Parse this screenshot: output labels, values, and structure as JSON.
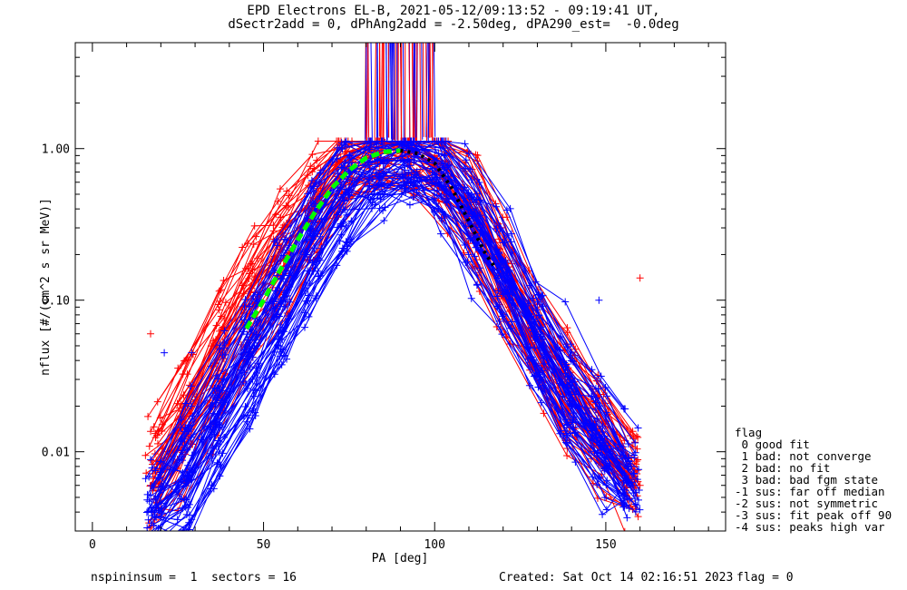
{
  "header": {
    "title_line1": "EPD Electrons EL-B, 2021-05-12/09:13:52 - 09:19:41 UT,",
    "title_line2": "dSectr2add = 0, dPhAng2add = -2.50deg, dPA290_est=  -0.0deg"
  },
  "footer": {
    "left": "nspininsum =  1  sectors = 16",
    "created": "Created: Sat Oct 14 02:16:51 2023",
    "flag": "flag = 0"
  },
  "legend": {
    "title": "flag",
    "items": [
      " 0 good fit",
      " 1 bad: not converge",
      " 2 bad: no fit",
      " 3 bad: bad fgm state",
      "-1 sus: far off median",
      "-2 sus: not symmetric",
      "-3 sus: fit peak off 90",
      "-4 sus: peaks high var"
    ]
  },
  "chart_data": {
    "type": "line",
    "xlabel": "PA [deg]",
    "ylabel": "nflux [#/(cm^2 s sr MeV)]",
    "xlim": [
      -5,
      185
    ],
    "ylim": [
      0.003,
      5
    ],
    "y_scale": "log",
    "x_ticks": [
      0,
      50,
      100,
      150
    ],
    "x_tick_labels": [
      "0",
      "50",
      "100",
      "150"
    ],
    "y_ticks": [
      0.01,
      0.1,
      1.0
    ],
    "y_tick_labels": [
      "0.01",
      "0.10",
      "1.00"
    ],
    "series": [
      {
        "style": "red-plus-lines",
        "color": "#ff0000",
        "x": [
          17,
          22,
          30,
          38,
          45,
          52,
          60,
          68,
          75,
          80,
          88,
          95,
          100,
          108,
          115,
          122,
          130,
          138,
          145,
          152,
          160
        ],
        "y": [
          0.006,
          0.01,
          0.022,
          0.045,
          0.09,
          0.17,
          0.3,
          0.52,
          0.8,
          0.97,
          0.98,
          0.95,
          0.9,
          0.55,
          0.25,
          0.12,
          0.055,
          0.03,
          0.017,
          0.01,
          0.006
        ]
      },
      {
        "style": "blue-plus-lines",
        "color": "#0000ff",
        "x": [
          20,
          25,
          32,
          40,
          48,
          55,
          62,
          70,
          78,
          85,
          92,
          100,
          105,
          112,
          120,
          128,
          135,
          142,
          150,
          158
        ],
        "y": [
          0.004,
          0.006,
          0.012,
          0.025,
          0.05,
          0.1,
          0.2,
          0.4,
          0.65,
          0.82,
          0.85,
          0.8,
          0.6,
          0.35,
          0.15,
          0.07,
          0.035,
          0.02,
          0.011,
          0.006
        ]
      },
      {
        "style": "green-dashed",
        "color": "#00ff00",
        "x": [
          45,
          50,
          55,
          60,
          65,
          70,
          75,
          80,
          85,
          90
        ],
        "y": [
          0.065,
          0.1,
          0.16,
          0.25,
          0.38,
          0.55,
          0.72,
          0.87,
          0.95,
          0.97
        ]
      },
      {
        "style": "black-dotted",
        "color": "#000000",
        "x": [
          90,
          95,
          100,
          105,
          110,
          115,
          118
        ],
        "y": [
          0.97,
          0.93,
          0.8,
          0.55,
          0.33,
          0.2,
          0.16
        ]
      }
    ],
    "outliers": [
      {
        "x": 17,
        "y": 0.06,
        "color": "#ff0000"
      },
      {
        "x": 160,
        "y": 0.14,
        "color": "#ff0000"
      },
      {
        "x": 21,
        "y": 0.045,
        "color": "#0000ff"
      },
      {
        "x": 29,
        "y": 0.045,
        "color": "#0000ff"
      },
      {
        "x": 148,
        "y": 0.1,
        "color": "#0000ff"
      }
    ],
    "legend_position": "right-outside"
  }
}
